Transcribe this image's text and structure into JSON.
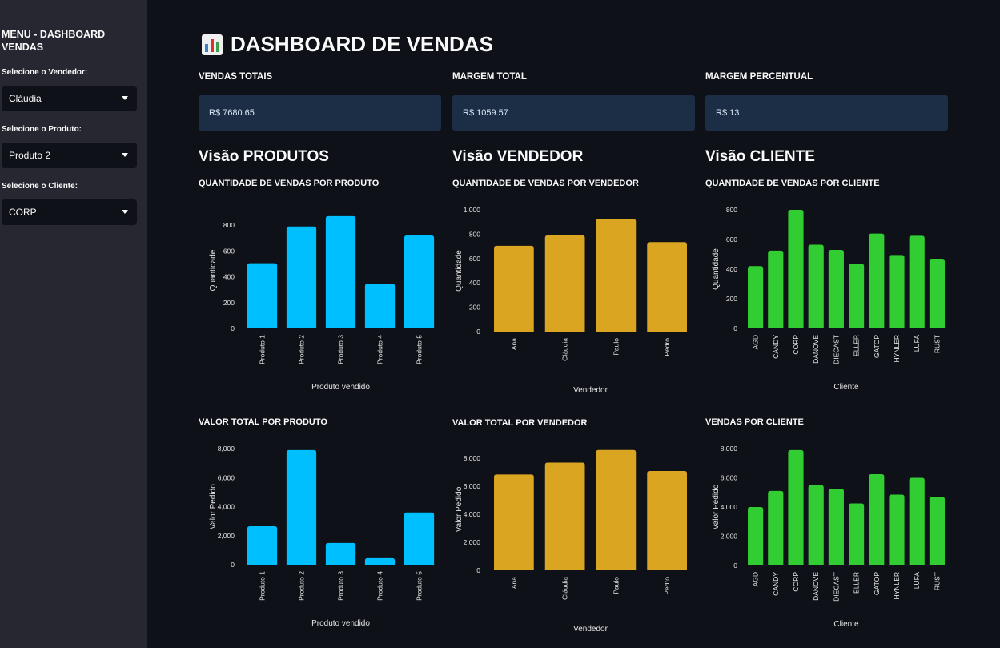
{
  "sidebar": {
    "title": "MENU - DASHBOARD VENDAS",
    "filters": [
      {
        "label": "Selecione o Vendedor:",
        "value": "Cláudia"
      },
      {
        "label": "Selecione o Produto:",
        "value": "Produto 2"
      },
      {
        "label": "Selecione o Cliente:",
        "value": "CORP"
      }
    ]
  },
  "header": {
    "title": "DASHBOARD DE VENDAS",
    "icon": "bar-chart-icon"
  },
  "metrics": [
    {
      "label": "VENDAS TOTAIS",
      "value": "R$ 7680.65"
    },
    {
      "label": "MARGEM TOTAL",
      "value": "R$ 1059.57"
    },
    {
      "label": "MARGEM PERCENTUAL",
      "value": "R$ 13"
    }
  ],
  "sections": [
    "Visão PRODUTOS",
    "Visão VENDEDOR",
    "Visão CLIENTE"
  ],
  "colors": {
    "produto": "#00bfff",
    "vendedor": "#daa520",
    "cliente": "#32cd32"
  },
  "chart_data": [
    {
      "type": "bar",
      "title": "QUANTIDADE DE VENDAS POR PRODUTO",
      "xlabel": "Produto vendido",
      "ylabel": "Quantidade",
      "categories": [
        "Produto 1",
        "Produto 2",
        "Produto 3",
        "Produto 4",
        "Produto 5"
      ],
      "values": [
        505,
        790,
        870,
        345,
        720
      ],
      "ylim": [
        0,
        900
      ],
      "yticks": [
        0,
        200,
        400,
        600,
        800
      ],
      "yticklabels": [
        "0",
        "200",
        "400",
        "600",
        "800"
      ],
      "color": "#00bfff"
    },
    {
      "type": "bar",
      "title": "QUANTIDADE DE VENDAS POR VENDEDOR",
      "xlabel": "Vendedor",
      "ylabel": "Quantidade",
      "categories": [
        "Ana",
        "Cláudia",
        "Paulo",
        "Pedro"
      ],
      "values": [
        705,
        790,
        925,
        735
      ],
      "ylim": [
        0,
        1000
      ],
      "yticks": [
        0,
        200,
        400,
        600,
        800,
        1000
      ],
      "yticklabels": [
        "0",
        "200",
        "400",
        "600",
        "800",
        "1,000"
      ],
      "color": "#daa520"
    },
    {
      "type": "bar",
      "title": "QUANTIDADE DE VENDAS POR CLIENTE",
      "xlabel": "Cliente",
      "ylabel": "Quantidade",
      "categories": [
        "AGD",
        "CANDY",
        "CORP",
        "DANOVE",
        "DIECAST",
        "ELLER",
        "GATOP",
        "HYNLER",
        "LUFA",
        "RUST"
      ],
      "values": [
        420,
        525,
        800,
        565,
        530,
        435,
        640,
        495,
        625,
        470
      ],
      "ylim": [
        0,
        800
      ],
      "yticks": [
        0,
        200,
        400,
        600,
        800
      ],
      "yticklabels": [
        "0",
        "200",
        "400",
        "600",
        "800"
      ],
      "color": "#32cd32"
    },
    {
      "type": "bar",
      "title": "VALOR TOTAL POR PRODUTO",
      "xlabel": "Produto vendido",
      "ylabel": "Valor Pedido",
      "categories": [
        "Produto 1",
        "Produto 2",
        "Produto 3",
        "Produto 4",
        "Produto 5"
      ],
      "values": [
        2650,
        7900,
        1500,
        450,
        3600
      ],
      "ylim": [
        0,
        8000
      ],
      "yticks": [
        0,
        2000,
        4000,
        6000,
        8000
      ],
      "yticklabels": [
        "0",
        "2,000",
        "4,000",
        "6,000",
        "8,000"
      ],
      "color": "#00bfff"
    },
    {
      "type": "bar",
      "title": "VALOR TOTAL POR VENDEDOR",
      "xlabel": "Vendedor",
      "ylabel": "Valor Pedido",
      "categories": [
        "Ana",
        "Cláudia",
        "Paulo",
        "Pedro"
      ],
      "values": [
        6850,
        7700,
        8600,
        7100
      ],
      "ylim": [
        0,
        8700
      ],
      "yticks": [
        0,
        2000,
        4000,
        6000,
        8000
      ],
      "yticklabels": [
        "0",
        "2,000",
        "4,000",
        "6,000",
        "8,000"
      ],
      "color": "#daa520"
    },
    {
      "type": "bar",
      "title": "VENDAS POR CLIENTE",
      "xlabel": "Cliente",
      "ylabel": "Valor Pedido",
      "categories": [
        "AGD",
        "CANDY",
        "CORP",
        "DANOVE",
        "DIECAST",
        "ELLER",
        "GATOP",
        "HYNLER",
        "LUFA",
        "RUST"
      ],
      "values": [
        4000,
        5100,
        7900,
        5500,
        5250,
        4250,
        6250,
        4850,
        6000,
        4700
      ],
      "ylim": [
        0,
        8000
      ],
      "yticks": [
        0,
        2000,
        4000,
        6000,
        8000
      ],
      "yticklabels": [
        "0",
        "2,000",
        "4,000",
        "6,000",
        "8,000"
      ],
      "color": "#32cd32"
    }
  ]
}
